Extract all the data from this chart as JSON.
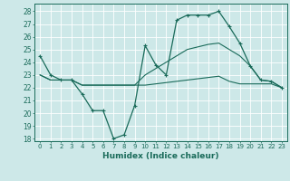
{
  "xlabel": "Humidex (Indice chaleur)",
  "x": [
    0,
    1,
    2,
    3,
    4,
    5,
    6,
    7,
    8,
    9,
    10,
    11,
    12,
    13,
    14,
    15,
    16,
    17,
    18,
    19,
    20,
    21,
    22,
    23
  ],
  "line1": [
    24.5,
    23.0,
    22.6,
    22.6,
    21.5,
    20.2,
    20.2,
    18.0,
    18.3,
    20.6,
    25.3,
    23.8,
    23.0,
    27.3,
    27.7,
    27.7,
    27.7,
    28.0,
    26.8,
    25.5,
    23.7,
    22.6,
    22.5,
    22.0
  ],
  "line2": [
    23.0,
    22.6,
    22.6,
    22.6,
    22.2,
    22.2,
    22.2,
    22.2,
    22.2,
    22.2,
    22.2,
    22.3,
    22.4,
    22.5,
    22.6,
    22.7,
    22.8,
    22.9,
    22.5,
    22.3,
    22.3,
    22.3,
    22.3,
    22.0
  ],
  "line3": [
    23.0,
    22.6,
    22.6,
    22.6,
    22.2,
    22.2,
    22.2,
    22.2,
    22.2,
    22.2,
    23.0,
    23.5,
    24.0,
    24.5,
    25.0,
    25.2,
    25.4,
    25.5,
    25.0,
    24.5,
    23.7,
    22.6,
    22.5,
    22.0
  ],
  "ylim": [
    17.8,
    28.6
  ],
  "yticks": [
    18,
    19,
    20,
    21,
    22,
    23,
    24,
    25,
    26,
    27,
    28
  ],
  "xlim": [
    -0.5,
    23.5
  ],
  "line_color": "#1a6b5a",
  "bg_color": "#cde8e8",
  "grid_color": "#b0d8d8"
}
